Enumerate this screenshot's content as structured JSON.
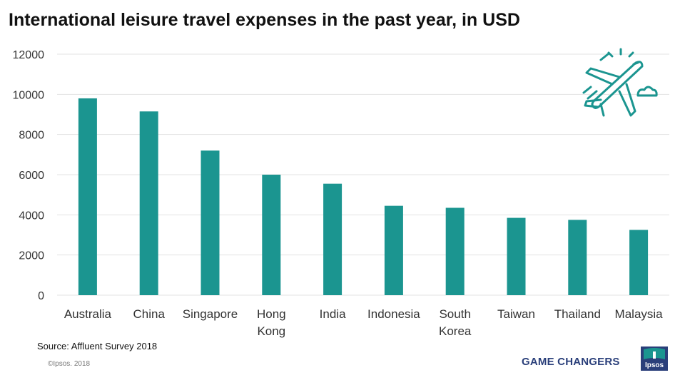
{
  "title": "International leisure travel expenses in the past year, in USD",
  "source": "Source: Affluent Survey 2018",
  "copyright": "©Ipsos. 2018",
  "brand_tagline": "GAME CHANGERS",
  "logo_text": "Ipsos",
  "decoration_icon": "airplane-icon",
  "colors": {
    "bar": "#1b9590",
    "grid": "#e3e3e3",
    "axis_text": "#333333",
    "brand": "#2a3f7a"
  },
  "chart_data": {
    "type": "bar",
    "title": "International leisure travel expenses in the past year, in USD",
    "xlabel": "",
    "ylabel": "",
    "categories": [
      "Australia",
      "China",
      "Singapore",
      "Hong Kong",
      "India",
      "Indonesia",
      "South Korea",
      "Taiwan",
      "Thailand",
      "Malaysia"
    ],
    "category_lines": [
      [
        "Australia"
      ],
      [
        "China"
      ],
      [
        "Singapore"
      ],
      [
        "Hong",
        "Kong"
      ],
      [
        "India"
      ],
      [
        "Indonesia"
      ],
      [
        "South",
        "Korea"
      ],
      [
        "Taiwan"
      ],
      [
        "Thailand"
      ],
      [
        "Malaysia"
      ]
    ],
    "values": [
      9800,
      9150,
      7200,
      6000,
      5550,
      4450,
      4350,
      3850,
      3750,
      3250
    ],
    "ylim": [
      0,
      12000
    ],
    "yticks": [
      0,
      2000,
      4000,
      6000,
      8000,
      10000,
      12000
    ],
    "grid": true,
    "legend": "none"
  }
}
